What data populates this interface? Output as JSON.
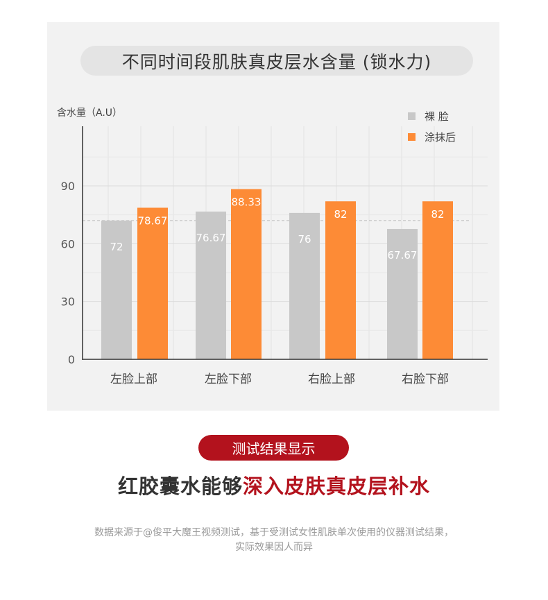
{
  "chart_data": {
    "type": "bar",
    "title": "不同时间段肌肤真皮层水含量 (锁水力)",
    "ylabel": "含水量（A.U）",
    "ylim": [
      0,
      120
    ],
    "yticks": [
      "0",
      "30",
      "60",
      "90"
    ],
    "categories": [
      "左脸上部",
      "左脸下部",
      "右脸上部",
      "右脸下部"
    ],
    "series": [
      {
        "name": "裸 脸",
        "color": "#c8c8c8",
        "values": [
          72,
          76.67,
          76,
          67.67
        ],
        "labels": [
          "72",
          "76.67",
          "76",
          "67.67"
        ]
      },
      {
        "name": "涂抹后",
        "color": "#fd8b36",
        "values": [
          78.67,
          88.33,
          82,
          82
        ],
        "labels": [
          "78.67",
          "88.33",
          "82",
          "82"
        ]
      }
    ],
    "reference_line": 72,
    "grid": true,
    "legend_position": "top-right"
  },
  "result_badge": "测试结果显示",
  "headline": {
    "part1": "红胶囊水能够",
    "part2": "深入皮肤真皮层补水"
  },
  "disclaimer": {
    "line1": "数据来源于@俊平大魔王视频测试，基于受测试女性肌肤单次使用的仪器测试结果，",
    "line2": "实际效果因人而异"
  },
  "colors": {
    "accent_red": "#b3121d",
    "orange": "#fd8b36",
    "gray_bar": "#c8c8c8",
    "panel_bg": "#f2f2f2"
  }
}
